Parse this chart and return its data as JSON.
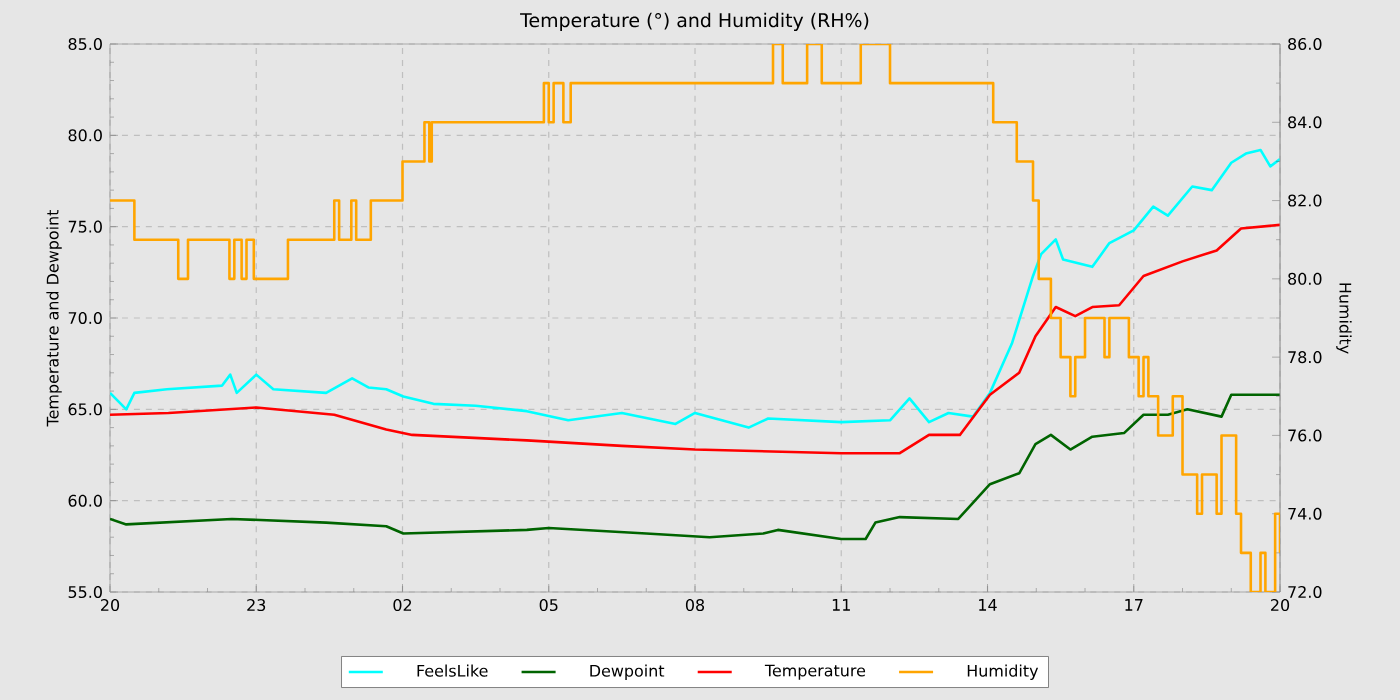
{
  "chart_data": {
    "type": "line",
    "title": "Temperature (°) and Humidity (RH%)",
    "ylabel": "Temperature and Dewpoint",
    "y2label": "Humidity",
    "xlim": [
      "--01-01T20:00",
      "--01-02T20:00"
    ],
    "xticks": [
      {
        "value": "--01-01T20:00",
        "label": "20"
      },
      {
        "value": "--01-01T23:00",
        "label": "23"
      },
      {
        "value": "--01-02T02:00",
        "label": "02"
      },
      {
        "value": "--01-02T05:00",
        "label": "05"
      },
      {
        "value": "--01-02T08:00",
        "label": "08"
      },
      {
        "value": "--01-02T11:00",
        "label": "11"
      },
      {
        "value": "--01-02T14:00",
        "label": "14"
      },
      {
        "value": "--01-02T17:00",
        "label": "17"
      },
      {
        "value": "--01-02T20:00",
        "label": "20"
      }
    ],
    "ylim": [
      55,
      85
    ],
    "yticks": [
      {
        "value": 55,
        "label": "55.0"
      },
      {
        "value": 60,
        "label": "60.0"
      },
      {
        "value": 65,
        "label": "65.0"
      },
      {
        "value": 70,
        "label": "70.0"
      },
      {
        "value": 75,
        "label": "75.0"
      },
      {
        "value": 80,
        "label": "80.0"
      },
      {
        "value": 85,
        "label": "85.0"
      }
    ],
    "y2lim": [
      72,
      86
    ],
    "y2ticks": [
      {
        "value": 72,
        "label": "72.0"
      },
      {
        "value": 74,
        "label": "74.0"
      },
      {
        "value": 76,
        "label": "76.0"
      },
      {
        "value": 78,
        "label": "78.0"
      },
      {
        "value": 80,
        "label": "80.0"
      },
      {
        "value": 82,
        "label": "82.0"
      },
      {
        "value": 84,
        "label": "84.0"
      },
      {
        "value": 86,
        "label": "86.0"
      }
    ],
    "grid": true,
    "legend": "bottom",
    "marker": "none",
    "series": [
      {
        "name": "FeelsLike",
        "color": "#00ffff",
        "x": [
          "--01-01T20:00",
          "--01-01T20:20",
          "--01-01T20:30",
          "--01-01T21:10",
          "--01-01T22:18",
          "--01-01T22:28",
          "--01-01T22:36",
          "--01-01T23:00",
          "--01-01T23:21",
          "--01-02T00:26",
          "--01-02T00:58",
          "--01-02T01:18",
          "--01-02T01:40",
          "--01-02T02:01",
          "--01-02T02:38",
          "--01-02T03:30",
          "--01-02T04:33",
          "--01-02T05:24",
          "--01-02T06:30",
          "--01-02T07:36",
          "--01-02T08:00",
          "--01-02T09:06",
          "--01-02T09:30",
          "--01-02T11:00",
          "--01-02T12:00",
          "--01-02T12:24",
          "--01-02T12:48",
          "--01-02T13:12",
          "--01-02T13:42",
          "--01-02T14:03",
          "--01-02T14:30",
          "--01-02T14:56",
          "--01-02T15:06",
          "--01-02T15:24",
          "--01-02T15:33",
          "--01-02T16:09",
          "--01-02T16:30",
          "--01-02T17:00",
          "--01-02T17:24",
          "--01-02T17:42",
          "--01-02T18:12",
          "--01-02T18:36",
          "--01-02T19:00",
          "--01-02T19:18",
          "--01-02T19:36",
          "--01-02T19:48",
          "--01-02T20:00"
        ],
        "values": [
          65.9,
          65.0,
          65.9,
          66.1,
          66.3,
          66.9,
          65.9,
          66.9,
          66.1,
          65.9,
          66.7,
          66.2,
          66.1,
          65.7,
          65.3,
          65.2,
          64.9,
          64.4,
          64.8,
          64.2,
          64.8,
          64.0,
          64.5,
          64.3,
          64.4,
          65.6,
          64.3,
          64.8,
          64.6,
          65.9,
          68.6,
          72.3,
          73.5,
          74.3,
          73.2,
          72.8,
          74.1,
          74.8,
          76.1,
          75.6,
          77.2,
          77.0,
          78.5,
          79.0,
          79.2,
          78.3,
          78.7
        ]
      },
      {
        "name": "Dewpoint",
        "color": "#006400",
        "x": [
          "--01-01T20:00",
          "--01-01T20:20",
          "--01-01T22:30",
          "--01-02T00:26",
          "--01-02T01:40",
          "--01-02T02:01",
          "--01-02T04:33",
          "--01-02T05:00",
          "--01-02T07:00",
          "--01-02T08:18",
          "--01-02T09:24",
          "--01-02T09:42",
          "--01-02T11:00",
          "--01-02T11:30",
          "--01-02T11:42",
          "--01-02T12:12",
          "--01-02T13:24",
          "--01-02T14:03",
          "--01-02T14:39",
          "--01-02T14:59",
          "--01-02T15:18",
          "--01-02T15:42",
          "--01-02T16:09",
          "--01-02T16:48",
          "--01-02T17:12",
          "--01-02T17:42",
          "--01-02T18:06",
          "--01-02T18:48",
          "--01-02T19:00",
          "--01-02T20:00"
        ],
        "values": [
          59.0,
          58.7,
          59.0,
          58.8,
          58.6,
          58.2,
          58.4,
          58.5,
          58.2,
          58.0,
          58.2,
          58.4,
          57.9,
          57.9,
          58.8,
          59.1,
          59.0,
          60.9,
          61.5,
          63.1,
          63.6,
          62.8,
          63.5,
          63.7,
          64.7,
          64.7,
          65.0,
          64.6,
          65.8,
          65.8
        ]
      },
      {
        "name": "Temperature",
        "color": "#ff0000",
        "x": [
          "--01-01T20:00",
          "--01-01T21:12",
          "--01-01T23:00",
          "--01-02T00:36",
          "--01-02T01:40",
          "--01-02T02:12",
          "--01-02T04:33",
          "--01-02T06:30",
          "--01-02T08:00",
          "--01-02T11:00",
          "--01-02T12:12",
          "--01-02T12:48",
          "--01-02T13:26",
          "--01-02T14:03",
          "--01-02T14:39",
          "--01-02T14:59",
          "--01-02T15:24",
          "--01-02T15:48",
          "--01-02T16:09",
          "--01-02T16:42",
          "--01-02T17:12",
          "--01-02T18:00",
          "--01-02T18:42",
          "--01-02T19:12",
          "--01-02T20:00"
        ],
        "values": [
          64.7,
          64.8,
          65.1,
          64.7,
          63.9,
          63.6,
          63.3,
          63.0,
          62.8,
          62.6,
          62.6,
          63.6,
          63.6,
          65.8,
          67.0,
          69.0,
          70.6,
          70.1,
          70.6,
          70.7,
          72.3,
          73.1,
          73.7,
          74.9,
          75.1
        ]
      },
      {
        "name": "Humidity",
        "color": "#ffa500",
        "type": "step",
        "axis": "y2",
        "x": [
          "--01-01T20:00",
          "--01-01T20:30",
          "--01-01T21:24",
          "--01-01T21:36",
          "--01-01T22:27",
          "--01-01T22:33",
          "--01-01T22:42",
          "--01-01T22:48",
          "--01-01T22:57",
          "--01-01T23:03",
          "--01-01T23:39",
          "--01-02T00:36",
          "--01-02T00:42",
          "--01-02T00:57",
          "--01-02T01:03",
          "--01-02T01:21",
          "--01-02T02:00",
          "--01-02T02:27",
          "--01-02T02:33",
          "--01-02T02:36",
          "--01-02T04:54",
          "--01-02T05:00",
          "--01-02T05:06",
          "--01-02T05:18",
          "--01-02T05:27",
          "--01-02T09:36",
          "--01-02T09:48",
          "--01-02T10:18",
          "--01-02T10:36",
          "--01-02T11:24",
          "--01-02T12:00",
          "--01-02T14:07",
          "--01-02T14:36",
          "--01-02T14:56",
          "--01-02T15:03",
          "--01-02T15:18",
          "--01-02T15:30",
          "--01-02T15:42",
          "--01-02T15:48",
          "--01-02T16:00",
          "--01-02T16:24",
          "--01-02T16:30",
          "--01-02T16:54",
          "--01-02T17:06",
          "--01-02T17:12",
          "--01-02T17:18",
          "--01-02T17:30",
          "--01-02T17:48",
          "--01-02T18:00",
          "--01-02T18:18",
          "--01-02T18:24",
          "--01-02T18:42",
          "--01-02T18:48",
          "--01-02T19:06",
          "--01-02T19:12",
          "--01-02T19:24",
          "--01-02T19:36",
          "--01-02T19:42",
          "--01-02T19:54",
          "--01-02T20:00"
        ],
        "values": [
          82,
          81,
          80,
          81,
          80,
          81,
          80,
          81,
          80,
          80,
          81,
          82,
          81,
          82,
          81,
          82,
          83,
          84,
          83,
          84,
          85,
          84,
          85,
          84,
          85,
          86,
          85,
          86,
          85,
          86,
          85,
          84,
          83,
          82,
          80,
          79,
          78,
          77,
          78,
          79,
          78,
          79,
          78,
          77,
          78,
          77,
          76,
          77,
          75,
          74,
          75,
          74,
          76,
          74,
          73,
          72,
          73,
          72,
          74,
          73
        ]
      }
    ]
  }
}
